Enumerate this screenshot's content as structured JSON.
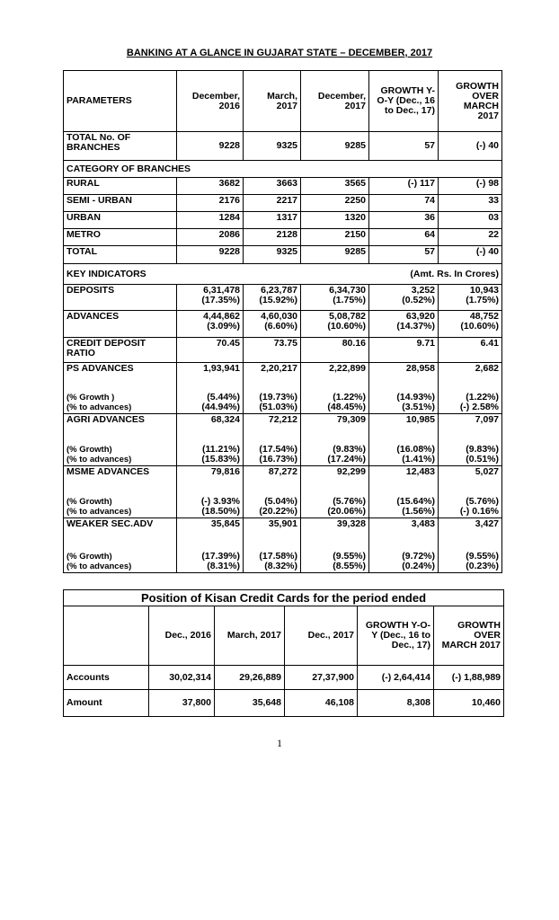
{
  "title": "BANKING AT A GLANCE IN GUJARAT STATE – DECEMBER, 2017",
  "table": {
    "header": [
      "PARAMETERS",
      "December, 2016",
      "March, 2017",
      "December, 2017",
      "GROWTH Y-O-Y (Dec., 16 to Dec., 17)",
      "GROWTH OVER MARCH 2017"
    ],
    "rows": [
      {
        "label": "TOTAL No. OF BRANCHES",
        "cells": [
          "9228",
          "9325",
          "9285",
          "57",
          "(-) 40"
        ]
      },
      {
        "section": "CATEGORY OF BRANCHES"
      },
      {
        "label": "RURAL",
        "cells": [
          "3682",
          "3663",
          "3565",
          "(-) 117",
          "(-) 98"
        ]
      },
      {
        "label": "SEMI - URBAN",
        "cells": [
          "2176",
          "2217",
          "2250",
          "74",
          "33"
        ]
      },
      {
        "label": "URBAN",
        "cells": [
          "1284",
          "1317",
          "1320",
          "36",
          "03"
        ]
      },
      {
        "label": "METRO",
        "cells": [
          "2086",
          "2128",
          "2150",
          "64",
          "22"
        ]
      },
      {
        "label": "TOTAL",
        "cells": [
          "9228",
          "9325",
          "9285",
          "57",
          "(-) 40"
        ]
      },
      {
        "section": "KEY INDICATORS",
        "note": "(Amt. Rs. In Crores)"
      },
      {
        "label": "DEPOSITS",
        "cells": [
          "6,31,478\n(17.35%)",
          "6,23,787\n(15.92%)",
          "6,34,730\n(1.75%)",
          "3,252\n(0.52%)",
          "10,943\n(1.75%)"
        ]
      },
      {
        "label": "ADVANCES",
        "cells": [
          "4,44,862\n(3.09%)",
          "4,60,030\n(6.60%)",
          "5,08,782\n(10.60%)",
          "63,920\n(14.37%)",
          "48,752\n(10.60%)"
        ]
      },
      {
        "label": "CREDIT DEPOSIT RATIO",
        "cells": [
          "70.45",
          "73.75",
          "80.16",
          "9.71",
          "6.41"
        ]
      },
      {
        "label": "PS ADVANCES",
        "cells": [
          "1,93,941",
          "2,20,217",
          "2,22,899",
          "28,958",
          "2,682"
        ],
        "sub_label": "(% Growth )\n(% to advances)",
        "sub_cells": [
          "(5.44%)\n(44.94%)",
          "(19.73%)\n(51.03%)",
          "(1.22%)\n(48.45%)",
          "(14.93%)\n(3.51%)",
          "(1.22%)\n(-) 2.58%"
        ]
      },
      {
        "label": "AGRI ADVANCES",
        "cells": [
          "68,324",
          "72,212",
          "79,309",
          "10,985",
          "7,097"
        ],
        "sub_label": "(% Growth)\n(% to advances)",
        "sub_cells": [
          "(11.21%)\n(15.83%)",
          "(17.54%)\n(16.73%)",
          "(9.83%)\n(17.24%)",
          "(16.08%)\n(1.41%)",
          "(9.83%)\n(0.51%)"
        ]
      },
      {
        "label": "MSME ADVANCES",
        "cells": [
          "79,816",
          "87,272",
          "92,299",
          "12,483",
          "5,027"
        ],
        "sub_label": "(% Growth)\n(% to advances)",
        "sub_cells": [
          "(-) 3.93%\n(18.50%)",
          "(5.04%)\n(20.22%)",
          "(5.76%)\n(20.06%)",
          "(15.64%)\n(1.56%)",
          "(5.76%)\n(-) 0.16%"
        ]
      },
      {
        "label": "WEAKER SEC.ADV",
        "cells": [
          "35,845",
          "35,901",
          "39,328",
          "3,483",
          "3,427"
        ],
        "sub_label": "(% Growth)\n(% to advances)",
        "sub_cells": [
          "(17.39%)\n(8.31%)",
          "(17.58%)\n(8.32%)",
          "(9.55%)\n(8.55%)",
          "(9.72%)\n(0.24%)",
          "(9.55%)\n(0.23%)"
        ]
      }
    ]
  },
  "kcc_table": {
    "title": "Position of Kisan Credit Cards for the period ended",
    "header": [
      "Dec., 2016",
      "March, 2017",
      "Dec., 2017",
      "GROWTH Y-O-Y (Dec., 16 to Dec., 17)",
      "GROWTH OVER MARCH 2017"
    ],
    "rows": [
      {
        "label": "Accounts",
        "cells": [
          "30,02,314",
          "29,26,889",
          "27,37,900",
          "(-) 2,64,414",
          "(-) 1,88,989"
        ]
      },
      {
        "label": "Amount",
        "cells": [
          "37,800",
          "35,648",
          "46,108",
          "8,308",
          "10,460"
        ]
      }
    ]
  },
  "page_number": "1"
}
